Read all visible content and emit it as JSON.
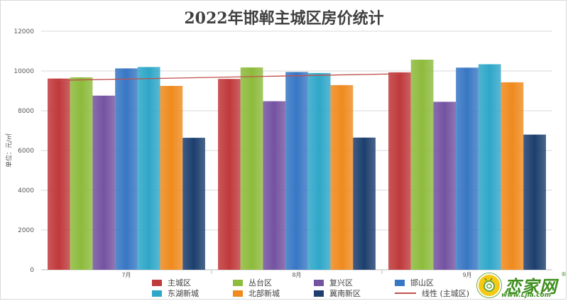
{
  "chart_data": {
    "type": "bar",
    "title": "2022年邯郸主城区房价统计",
    "xlabel": "",
    "ylabel": "单位：元/㎡",
    "ylim": [
      0,
      12000
    ],
    "yticks": [
      0,
      2000,
      4000,
      6000,
      8000,
      10000,
      12000
    ],
    "grid": true,
    "legend_position": "bottom",
    "categories": [
      "7月",
      "8月",
      "9月"
    ],
    "series": [
      {
        "name": "主城区",
        "color": "#c0393b",
        "values": [
          9620,
          9600,
          9930
        ]
      },
      {
        "name": "丛台区",
        "color": "#8dbb3c",
        "values": [
          9680,
          10180,
          10570
        ]
      },
      {
        "name": "复兴区",
        "color": "#7453a1",
        "values": [
          8760,
          8480,
          8450
        ]
      },
      {
        "name": "邯山区",
        "color": "#3877c4",
        "values": [
          10130,
          9950,
          10170
        ]
      },
      {
        "name": "东湖新城",
        "color": "#2fa7c9",
        "values": [
          10200,
          9900,
          10340
        ]
      },
      {
        "name": "北部新城",
        "color": "#ef8a1e",
        "values": [
          9250,
          9290,
          9430
        ]
      },
      {
        "name": "冀南新区",
        "color": "#1d3f6e",
        "values": [
          6640,
          6650,
          6800
        ]
      }
    ],
    "trendline": {
      "name": "线性 (主城区)",
      "color": "#c0504d",
      "start": 9530,
      "end": 9860
    }
  },
  "watermark": {
    "brand": "恋家网",
    "url": "www.Ljia.com",
    "reg": "®"
  }
}
